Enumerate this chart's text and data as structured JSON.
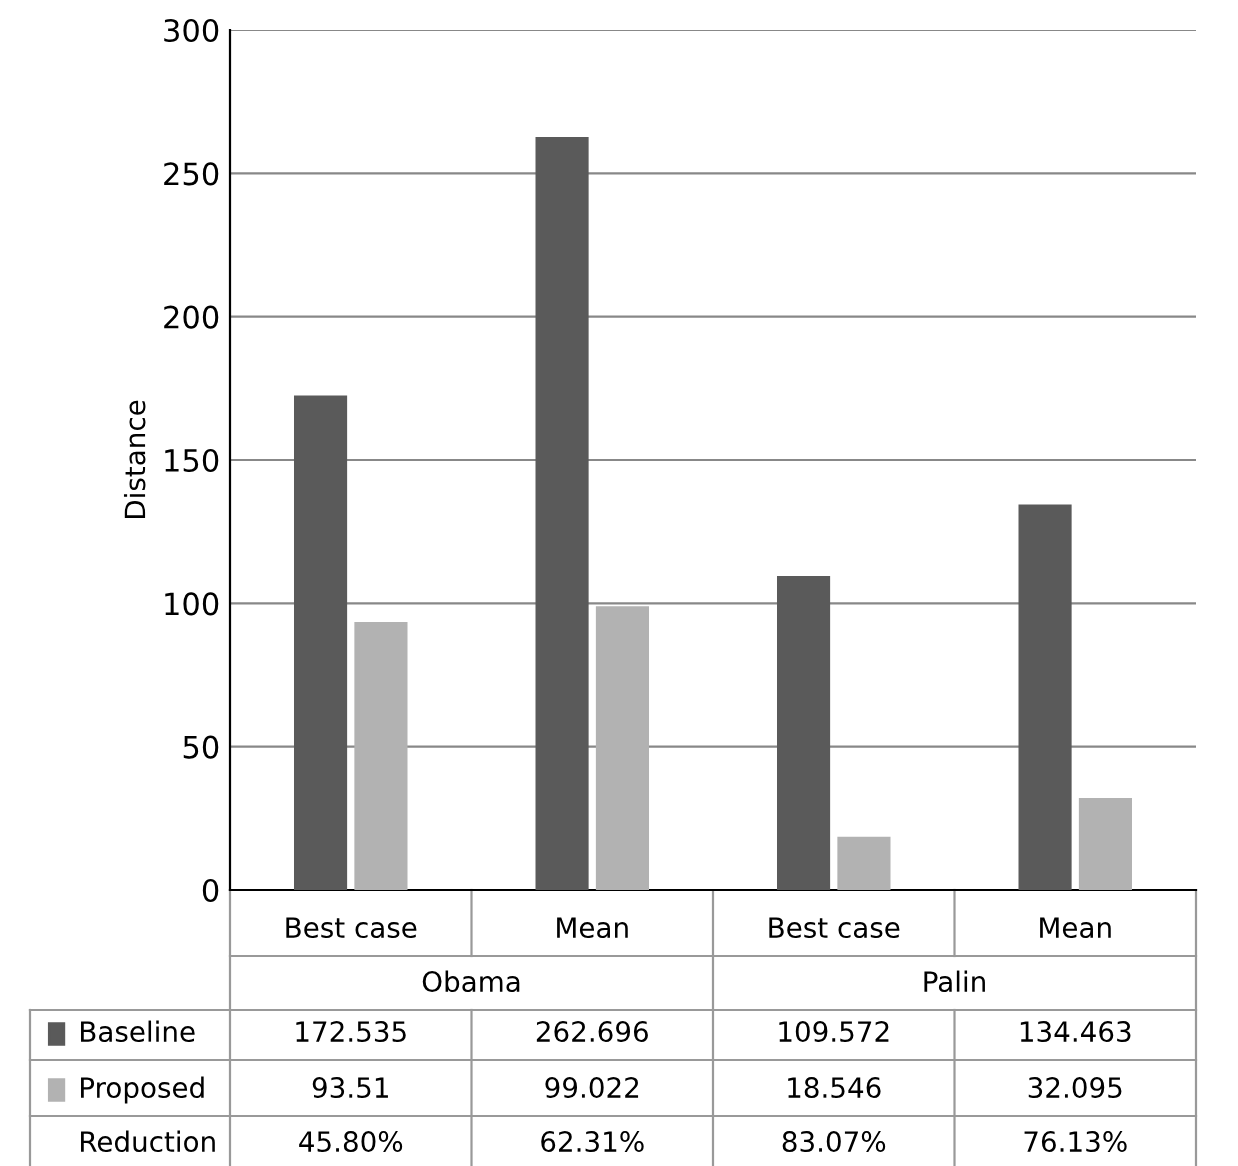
{
  "chart_data": {
    "type": "bar",
    "ylabel": "Distance",
    "categories": [
      "Best case",
      "Mean",
      "Best case",
      "Mean"
    ],
    "series": [
      {
        "name": "Baseline",
        "color": "#5a5a5a",
        "values": [
          172.535,
          262.696,
          109.572,
          134.463
        ]
      },
      {
        "name": "Proposed",
        "color": "#b2b2b2",
        "values": [
          93.51,
          99.022,
          18.546,
          32.095
        ]
      }
    ],
    "ylim": [
      0,
      300
    ],
    "yticks": [
      0,
      50,
      100,
      150,
      200,
      250,
      300
    ],
    "grid": "y",
    "legend": "bottom left",
    "data_labels": true,
    "annotations": [
      "Obama",
      "Palin",
      "Reduction",
      "45.80%",
      "62.31%",
      "83.07%",
      "76.13%"
    ]
  }
}
